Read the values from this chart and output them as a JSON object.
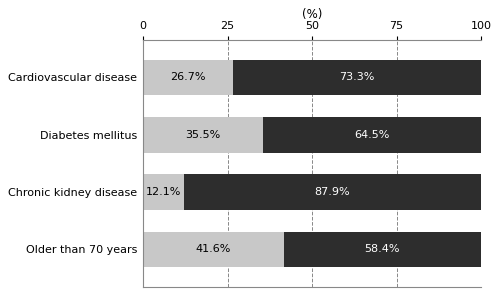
{
  "categories": [
    "Cardiovascular disease",
    "Diabetes mellitus",
    "Chronic kidney disease",
    "Older than 70 years"
  ],
  "light_values": [
    26.7,
    35.5,
    12.1,
    41.6
  ],
  "dark_values": [
    73.3,
    64.5,
    87.9,
    58.4
  ],
  "light_labels": [
    "26.7%",
    "35.5%",
    "12.1%",
    "41.6%"
  ],
  "dark_labels": [
    "73.3%",
    "64.5%",
    "87.9%",
    "58.4%"
  ],
  "light_color": "#c8c8c8",
  "dark_color": "#2d2d2d",
  "xlabel": "(%)",
  "xlim": [
    0,
    100
  ],
  "xticks": [
    0,
    25,
    50,
    75,
    100
  ],
  "bar_height": 0.62,
  "figsize": [
    5.0,
    2.95
  ],
  "dpi": 100,
  "label_fontsize": 8.0,
  "tick_fontsize": 8.0,
  "xlabel_fontsize": 8.5,
  "bg_color": "#ffffff"
}
